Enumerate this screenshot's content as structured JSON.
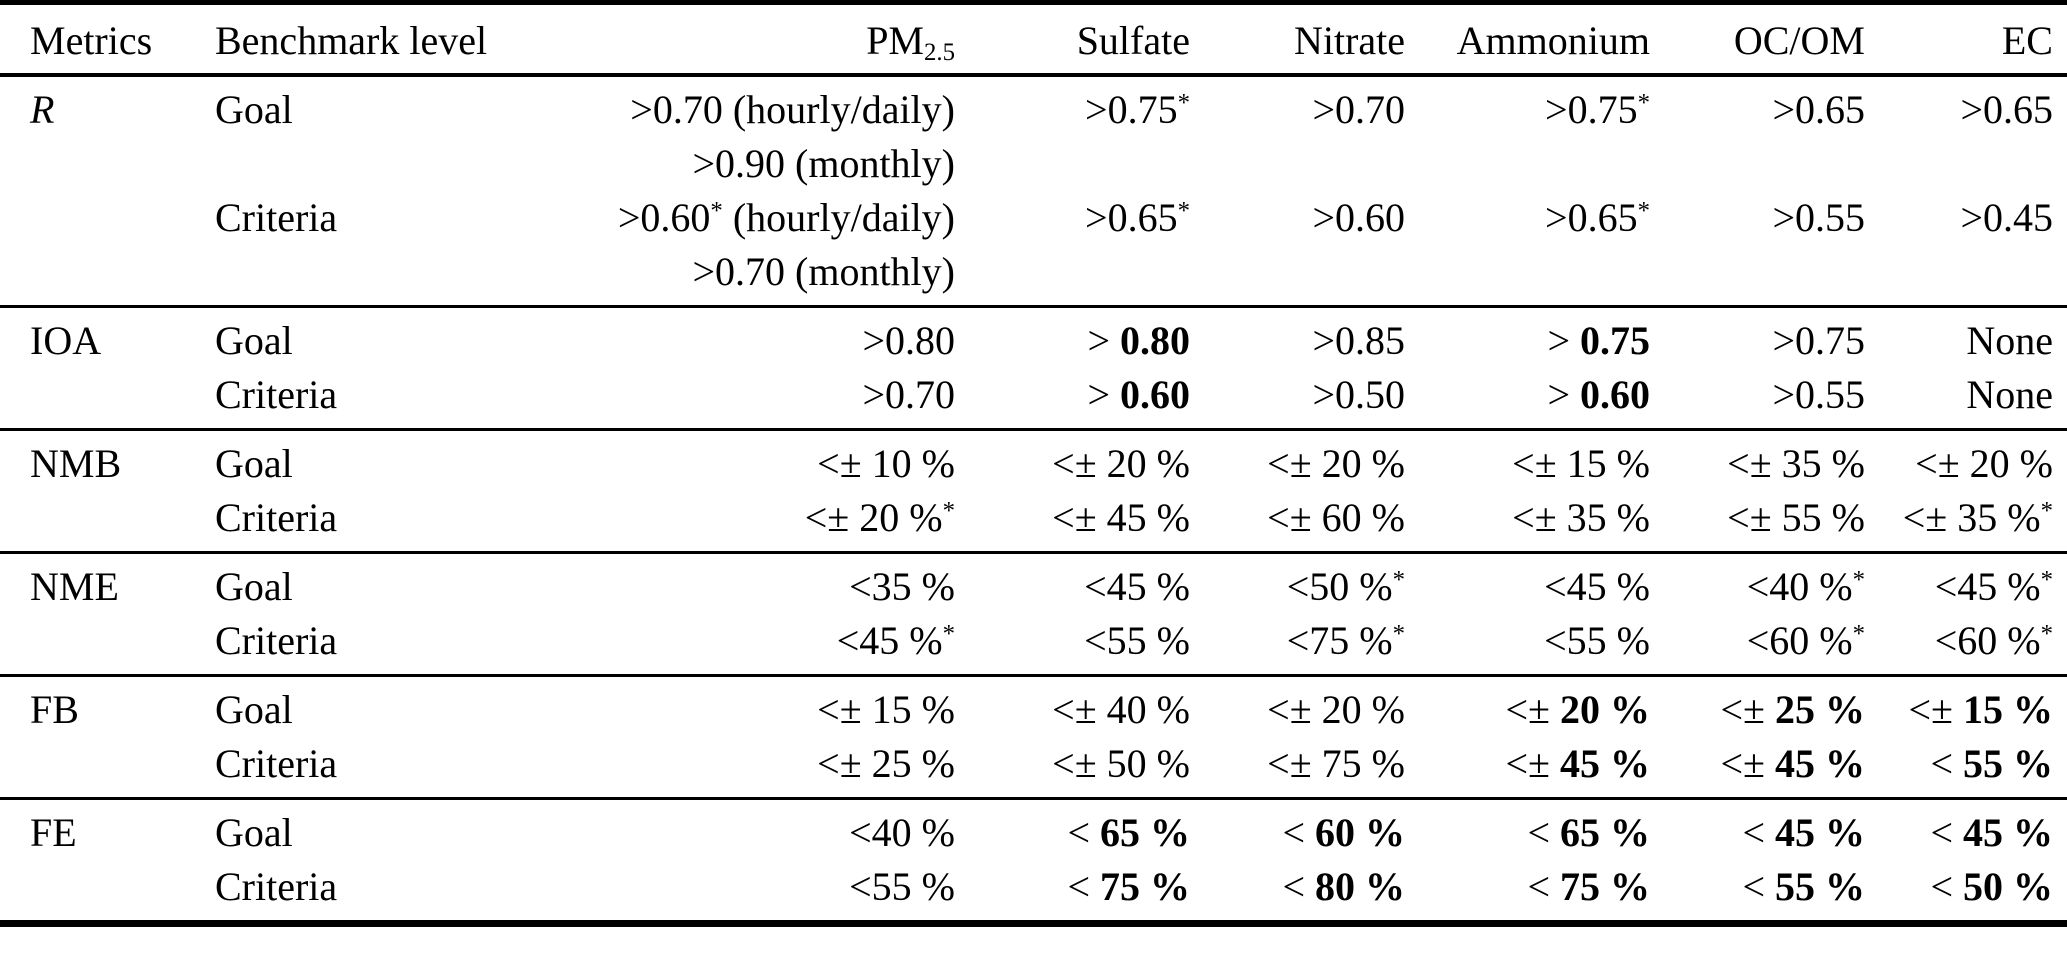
{
  "document": {
    "kind": "scientific-paper-table",
    "text_color": "#000000",
    "background_color": "#ffffff",
    "rule_color": "#000000"
  },
  "table": {
    "columns": [
      "Metrics",
      "Benchmark level",
      "PM~2.5~",
      "Sulfate",
      "Nitrate",
      "Ammonium",
      "OC/OM",
      "EC"
    ],
    "sections": [
      {
        "metric": "R",
        "italic": true,
        "rows": [
          {
            "level": "Goal",
            "values": [
              ">0.70 (hourly/daily)",
              ">0.75^*",
              ">0.70",
              ">0.75^*",
              ">0.65",
              ">0.65"
            ]
          },
          {
            "level": "",
            "values": [
              ">0.90 (monthly)",
              "",
              "",
              "",
              "",
              ""
            ]
          },
          {
            "level": "Criteria",
            "values": [
              ">0.60^* (hourly/daily)",
              ">0.65^*",
              ">0.60",
              ">0.65^*",
              ">0.55",
              ">0.45"
            ]
          },
          {
            "level": "",
            "values": [
              ">0.70 (monthly)",
              "",
              "",
              "",
              "",
              ""
            ]
          }
        ]
      },
      {
        "metric": "IOA",
        "italic": false,
        "rows": [
          {
            "level": "Goal",
            "values": [
              ">0.80",
              "> **0.80**",
              ">0.85",
              "> **0.75**",
              ">0.75",
              "None"
            ]
          },
          {
            "level": "Criteria",
            "values": [
              ">0.70",
              "> **0.60**",
              ">0.50",
              "> **0.60**",
              ">0.55",
              "None"
            ]
          }
        ]
      },
      {
        "metric": "NMB",
        "italic": false,
        "rows": [
          {
            "level": "Goal",
            "values": [
              "<± 10 %",
              "<± 20 %",
              "<± 20 %",
              "<± 15 %",
              "<± 35 %",
              "<± 20 %"
            ]
          },
          {
            "level": "Criteria",
            "values": [
              "<± 20 %^*",
              "<± 45 %",
              "<± 60 %",
              "<± 35 %",
              "<± 55 %",
              "<± 35 %^*"
            ]
          }
        ]
      },
      {
        "metric": "NME",
        "italic": false,
        "rows": [
          {
            "level": "Goal",
            "values": [
              "<35 %",
              "<45 %",
              "<50 %^*",
              "<45 %",
              "<40 %^*",
              "<45 %^*"
            ]
          },
          {
            "level": "Criteria",
            "values": [
              "<45 %^*",
              "<55 %",
              "<75 %^*",
              "<55 %",
              "<60 %^*",
              "<60 %^*"
            ]
          }
        ]
      },
      {
        "metric": "FB",
        "italic": false,
        "rows": [
          {
            "level": "Goal",
            "values": [
              "<± 15 %",
              "<± 40 %",
              "<± 20 %",
              "<± **20 %**",
              "<± **25 %**",
              "<± **15 %**"
            ]
          },
          {
            "level": "Criteria",
            "values": [
              "<± 25 %",
              "<± 50 %",
              "<± 75 %",
              "<± **45 %**",
              "<± **45 %**",
              "< **55 %**"
            ]
          }
        ]
      },
      {
        "metric": "FE",
        "italic": false,
        "rows": [
          {
            "level": "Goal",
            "values": [
              "<40 %",
              "< **65 %**",
              "< **60 %**",
              "< **65 %**",
              "< **45 %**",
              "< **45 %**"
            ]
          },
          {
            "level": "Criteria",
            "values": [
              "<55 %",
              "< **75 %**",
              "< **80 %**",
              "< **75 %**",
              "< **55 %**",
              "< **50 %**"
            ]
          }
        ]
      }
    ]
  }
}
